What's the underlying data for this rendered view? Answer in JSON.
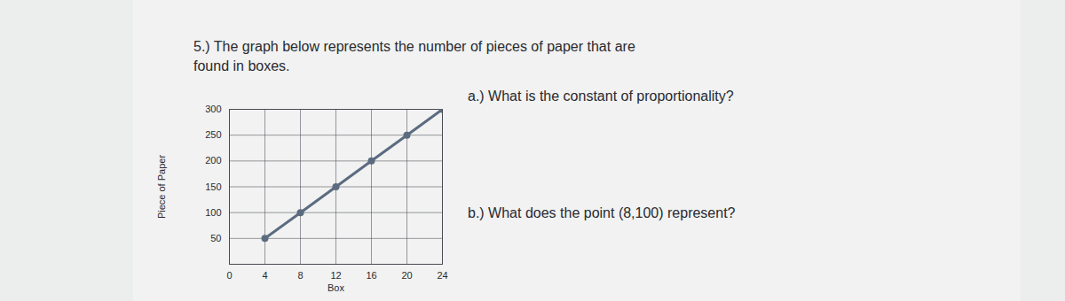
{
  "header": {
    "question_lines": [
      "5.) The graph below represents the number of pieces of paper that are",
      "found in boxes."
    ]
  },
  "questions": {
    "a": "a.) What is the constant of proportionality?",
    "b": "b.) What does the point (8,100) represent?"
  },
  "chart_data": {
    "type": "line",
    "x": [
      4,
      8,
      12,
      16,
      20,
      24
    ],
    "values": [
      50,
      100,
      150,
      200,
      250,
      300
    ],
    "x_label": "Box",
    "y_label": "Piece of Paper",
    "xlim": [
      0,
      24
    ],
    "ylim": [
      0,
      300
    ],
    "xticks": [
      0,
      4,
      8,
      12,
      16,
      20,
      24
    ],
    "yticks": [
      50,
      100,
      150,
      200,
      250,
      300
    ],
    "grid": true,
    "marker": "circle",
    "color": "#5b6b80"
  }
}
